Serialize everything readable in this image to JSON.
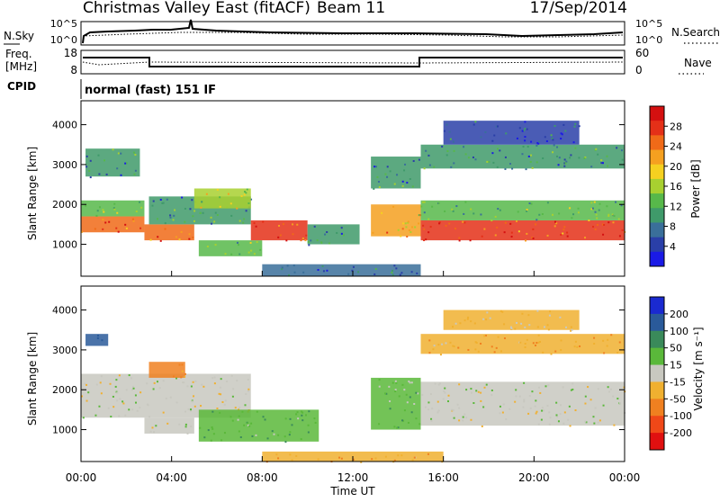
{
  "header": {
    "title": "Christmas Valley East (fitACF)",
    "beam": "Beam 11",
    "date": "17/Sep/2014"
  },
  "noise_panel": {
    "left_label": "N.Sky",
    "right_label": "N.Search",
    "tick_top": "10^5",
    "tick_bottom": "10^0"
  },
  "freq_panel": {
    "left_label_line1": "Freq.",
    "left_label_line2": "[MHz]",
    "left_tick_top": "18",
    "left_tick_bottom": "8",
    "right_label": "Nave",
    "right_tick_top": "60",
    "right_tick_bottom": "0"
  },
  "cpid": {
    "label": "CPID",
    "value": "normal (fast) 151 IF"
  },
  "chart_data": [
    {
      "type": "heatmap",
      "xlabel": "Time UT",
      "ylabel": "Slant Range [km]",
      "x_ticks": [
        "00:00",
        "04:00",
        "08:00",
        "12:00",
        "16:00",
        "20:00",
        "00:00"
      ],
      "xlim_hours": [
        0,
        24
      ],
      "ylim_km": [
        200,
        4600
      ],
      "y_ticks": [
        1000,
        2000,
        3000,
        4000
      ],
      "colorbar": {
        "label": "Power [dB]",
        "ticks": [
          "4",
          "8",
          "12",
          "16",
          "20",
          "24",
          "28"
        ],
        "colors": [
          "#1a1ae6",
          "#2a3fa8",
          "#3a6f9a",
          "#3f9a6a",
          "#57b84a",
          "#a8d030",
          "#f5d020",
          "#f5a020",
          "#f06a18",
          "#e43018",
          "#d41010"
        ]
      },
      "echo_regions": [
        {
          "t0": 0.0,
          "t1": 2.8,
          "r0": 1300,
          "r1": 1700,
          "level": 24
        },
        {
          "t0": 0.0,
          "t1": 2.8,
          "r0": 1700,
          "r1": 2100,
          "level": 12
        },
        {
          "t0": 0.2,
          "t1": 2.6,
          "r0": 2700,
          "r1": 3400,
          "level": 8
        },
        {
          "t0": 2.8,
          "t1": 5.0,
          "r0": 1100,
          "r1": 1500,
          "level": 24
        },
        {
          "t0": 3.0,
          "t1": 7.5,
          "r0": 1500,
          "r1": 2200,
          "level": 8
        },
        {
          "t0": 5.0,
          "t1": 7.5,
          "r0": 1900,
          "r1": 2400,
          "level": 16
        },
        {
          "t0": 5.2,
          "t1": 8.0,
          "r0": 700,
          "r1": 1100,
          "level": 12
        },
        {
          "t0": 7.5,
          "t1": 10.0,
          "r0": 1100,
          "r1": 1600,
          "level": 26
        },
        {
          "t0": 10.0,
          "t1": 12.3,
          "r0": 1000,
          "r1": 1500,
          "level": 8
        },
        {
          "t0": 8.0,
          "t1": 15.0,
          "r0": 200,
          "r1": 500,
          "level": 6
        },
        {
          "t0": 12.8,
          "t1": 15.0,
          "r0": 1200,
          "r1": 2000,
          "level": 20
        },
        {
          "t0": 12.8,
          "t1": 15.0,
          "r0": 2400,
          "r1": 3200,
          "level": 8
        },
        {
          "t0": 15.0,
          "t1": 24.0,
          "r0": 1100,
          "r1": 1600,
          "level": 26
        },
        {
          "t0": 15.0,
          "t1": 24.0,
          "r0": 1600,
          "r1": 2100,
          "level": 12
        },
        {
          "t0": 15.0,
          "t1": 24.0,
          "r0": 2900,
          "r1": 3500,
          "level": 8
        },
        {
          "t0": 16.0,
          "t1": 22.0,
          "r0": 3500,
          "r1": 4100,
          "level": 4
        }
      ]
    },
    {
      "type": "heatmap",
      "xlabel": "Time UT",
      "ylabel": "Slant Range [km]",
      "x_ticks": [
        "00:00",
        "04:00",
        "08:00",
        "12:00",
        "16:00",
        "20:00",
        "00:00"
      ],
      "xlim_hours": [
        0,
        24
      ],
      "ylim_km": [
        200,
        4600
      ],
      "y_ticks": [
        1000,
        2000,
        3000,
        4000
      ],
      "colorbar": {
        "label": "Velocity [m s⁻¹]",
        "ticks": [
          "200",
          "100",
          "50",
          "15",
          "-15",
          "-50",
          "-100",
          "-200"
        ],
        "colors": [
          "#1a2ad0",
          "#2a5a9a",
          "#3a8a5a",
          "#5ab83a",
          "#c8c8c0",
          "#f0b030",
          "#f08020",
          "#f04818",
          "#e01010"
        ]
      },
      "echo_regions": [
        {
          "t0": 0.0,
          "t1": 7.5,
          "r0": 1300,
          "r1": 2400,
          "velocity": 0
        },
        {
          "t0": 2.8,
          "t1": 5.0,
          "r0": 900,
          "r1": 1300,
          "velocity": 0
        },
        {
          "t0": 3.0,
          "t1": 4.6,
          "r0": 2300,
          "r1": 2700,
          "velocity": -60
        },
        {
          "t0": 0.2,
          "t1": 1.2,
          "r0": 3100,
          "r1": 3400,
          "velocity": 150
        },
        {
          "t0": 5.2,
          "t1": 10.5,
          "r0": 700,
          "r1": 1500,
          "velocity": 40
        },
        {
          "t0": 8.0,
          "t1": 16.0,
          "r0": 200,
          "r1": 450,
          "velocity": -40
        },
        {
          "t0": 12.8,
          "t1": 15.0,
          "r0": 1000,
          "r1": 2300,
          "velocity": 30
        },
        {
          "t0": 15.0,
          "t1": 24.0,
          "r0": 1100,
          "r1": 2200,
          "velocity": 0
        },
        {
          "t0": 15.0,
          "t1": 24.0,
          "r0": 2900,
          "r1": 3400,
          "velocity": -40
        },
        {
          "t0": 16.0,
          "t1": 22.0,
          "r0": 3500,
          "r1": 4000,
          "velocity": -20
        }
      ]
    }
  ]
}
